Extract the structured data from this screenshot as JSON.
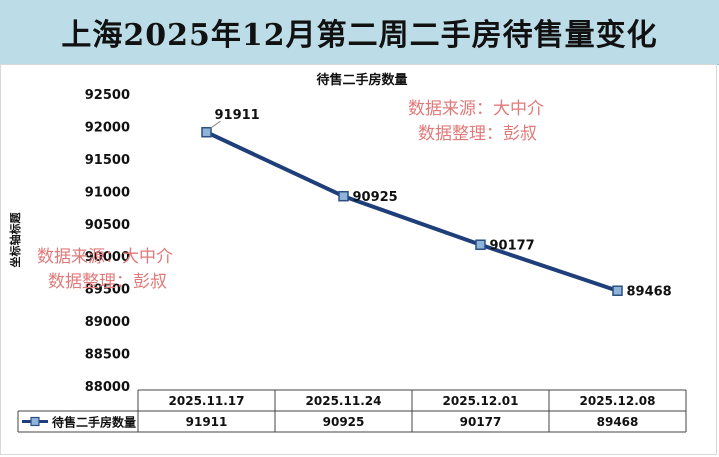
{
  "banner": {
    "title": "上海2025年12月第二周二手房待售量变化"
  },
  "chart_data": {
    "type": "line",
    "title": "待售二手房数量",
    "ylabel": "坐标轴标题",
    "xlabel": "",
    "categories": [
      "2025.11.17",
      "2025.11.24",
      "2025.12.01",
      "2025.12.08"
    ],
    "series": [
      {
        "name": "待售二手房数量",
        "values": [
          91911,
          90925,
          90177,
          89468
        ],
        "color": "#1f3f7a"
      }
    ],
    "ylim": [
      88000,
      92500
    ],
    "yticks": [
      88000,
      88500,
      89000,
      89500,
      90000,
      90500,
      91000,
      91500,
      92000,
      92500
    ],
    "grid": false,
    "legend": "data-table",
    "data_table": true
  },
  "watermarks": [
    {
      "line1": "数据来源：大中介",
      "line2": "数据整理：彭叔",
      "color": "#e07a7a"
    },
    {
      "line1": "数据来源：大中介",
      "line2": "数据整理：彭叔",
      "color": "#e07a7a"
    }
  ]
}
